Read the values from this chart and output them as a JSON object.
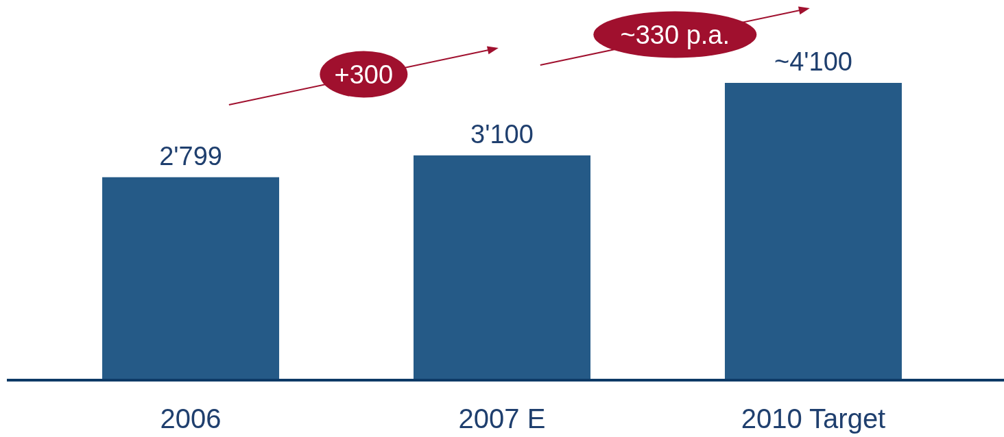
{
  "chart_data": {
    "type": "bar",
    "categories": [
      "2006",
      "2007 E",
      "2010 Target"
    ],
    "values": [
      2799,
      3100,
      4100
    ],
    "value_labels": [
      "2'799",
      "3'100",
      "~4'100"
    ],
    "color": "#255a87",
    "annotations": [
      "+300",
      "~330 p.a."
    ]
  }
}
